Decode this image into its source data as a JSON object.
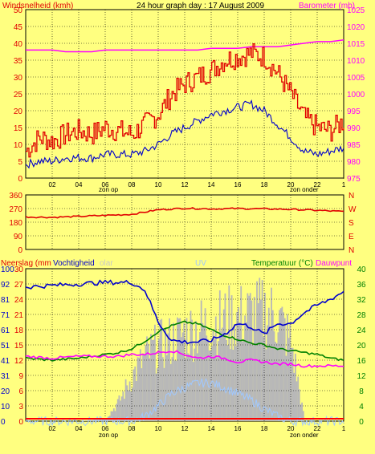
{
  "header": {
    "title": "24 hour graph day : 17 August 2009",
    "left_axis_label": "Windsnelheid (kmh)",
    "right_axis_label": "Barometer (mb)"
  },
  "time_axis": {
    "ticks": [
      "02",
      "04",
      "06",
      "08",
      "10",
      "12",
      "14",
      "16",
      "18",
      "20",
      "22",
      "1"
    ],
    "sunrise_label": "zon op",
    "sunset_label": "zon onder"
  },
  "panel3": {
    "label_rain": "Neerslag (mm",
    "label_humidity": "Vochtigheid",
    "label_solar": "olar",
    "label_uv": "UV",
    "label_temp": "Temperatuur (°C)",
    "label_dew": "Dauwpunt"
  },
  "colors": {
    "background": "#ffff80",
    "wind_gust": "#e00000",
    "wind_avg": "#0000cc",
    "barometer": "#ff00ff",
    "direction": "#e00000",
    "humidity": "#0000cc",
    "temperature": "#008000",
    "dewpoint": "#ff00ff",
    "solar": "#b8b8b8",
    "uv": "#a0c8ff",
    "rain": "#ff0000"
  },
  "chart_data": [
    {
      "type": "line",
      "title": "24 hour graph day : 17 August 2009",
      "xlabel": "",
      "ylabel": "Windsnelheid (kmh)",
      "y2label": "Barometer (mb)",
      "x_ticks": [
        "02",
        "04",
        "06",
        "08",
        "10",
        "12",
        "14",
        "16",
        "18",
        "20",
        "22",
        "1"
      ],
      "ylim": [
        0,
        50
      ],
      "y_ticks": [
        0,
        5,
        10,
        15,
        20,
        25,
        30,
        35,
        40,
        45,
        50
      ],
      "y2lim": [
        975,
        1025
      ],
      "y2_ticks": [
        975,
        980,
        985,
        990,
        995,
        1000,
        1005,
        1010,
        1015,
        1020,
        1025
      ],
      "x": [
        0,
        1,
        2,
        3,
        4,
        5,
        6,
        7,
        8,
        9,
        10,
        11,
        12,
        13,
        14,
        15,
        16,
        17,
        18,
        19,
        20,
        21,
        22,
        23,
        24
      ],
      "series": [
        {
          "name": "Windsnelheid (kmh)",
          "axis": "left",
          "values": [
            8,
            12,
            11,
            13,
            14,
            13,
            15,
            14,
            13,
            16,
            19,
            25,
            28,
            30,
            32,
            35,
            36,
            37,
            36,
            31,
            25,
            18,
            15,
            14,
            17
          ]
        },
        {
          "name": "Gemiddelde windsnelheid",
          "axis": "left",
          "values": [
            4,
            5,
            5,
            6,
            6,
            6,
            7,
            7,
            7,
            8,
            10,
            13,
            15,
            17,
            19,
            20,
            21,
            22,
            20,
            16,
            12,
            8,
            7,
            8,
            9
          ]
        },
        {
          "name": "Barometer (mb)",
          "axis": "right",
          "values": [
            1013,
            1013,
            1013,
            1012.5,
            1012.5,
            1012.5,
            1013,
            1013,
            1013,
            1013,
            1013,
            1013,
            1013,
            1013,
            1013.5,
            1013.5,
            1013.5,
            1014,
            1014,
            1014,
            1014.5,
            1015,
            1015.5,
            1015.5,
            1016
          ]
        }
      ]
    },
    {
      "type": "line",
      "title": "",
      "xlabel": "",
      "ylabel": "",
      "ylim": [
        0,
        360
      ],
      "y_ticks": [
        0,
        90,
        180,
        270,
        360
      ],
      "y2_ticks": [
        "N",
        "E",
        "S",
        "W",
        "N"
      ],
      "x": [
        0,
        2,
        4,
        6,
        8,
        10,
        12,
        14,
        16,
        18,
        20,
        22,
        24
      ],
      "series": [
        {
          "name": "Windrichting",
          "values": [
            215,
            212,
            218,
            225,
            232,
            262,
            272,
            268,
            270,
            268,
            265,
            258,
            250
          ]
        }
      ]
    },
    {
      "type": "area",
      "title": "",
      "xlabel": "",
      "ylabel_left": "Neerslag (mm",
      "ylabel_left2": "Vochtigheid",
      "ylabel_right": "Temperatuur (°C)",
      "ylabel_right2": "Dauwpunt",
      "y_ticks_humidity": [
        0,
        10,
        20,
        31,
        41,
        51,
        61,
        71,
        81,
        92,
        100
      ],
      "y_ticks_rain": [
        0,
        3,
        6,
        9,
        12,
        15,
        18,
        21,
        24,
        27,
        30
      ],
      "ylim_temperature": [
        0,
        40
      ],
      "y_ticks_temperature": [
        0,
        4,
        8,
        12,
        16,
        20,
        24,
        28,
        32,
        36,
        40
      ],
      "x": [
        0,
        2,
        4,
        6,
        7,
        8,
        9,
        10,
        11,
        12,
        13,
        14,
        15,
        16,
        17,
        18,
        19,
        20,
        21,
        22,
        23,
        24
      ],
      "series": [
        {
          "name": "Vochtigheid",
          "axis": "humidity",
          "values": [
            88,
            89,
            90,
            91,
            91,
            91,
            86,
            65,
            53,
            52,
            52,
            53,
            57,
            64,
            62,
            57,
            64,
            64,
            71,
            76,
            80,
            85
          ]
        },
        {
          "name": "Temperatuur (°C)",
          "axis": "temperature",
          "values": [
            16.5,
            16,
            16.5,
            17.5,
            18,
            19,
            21,
            23.5,
            25,
            26,
            25.5,
            24,
            22.5,
            21.5,
            20.5,
            20,
            19,
            18.5,
            18,
            17.5,
            16.5,
            16
          ]
        },
        {
          "name": "Dauwpunt",
          "axis": "temperature",
          "values": [
            17,
            16.5,
            17,
            17,
            17,
            17.5,
            17.5,
            18,
            18.5,
            17.5,
            16.5,
            17,
            16.5,
            15.5,
            16,
            15.5,
            15,
            15,
            14.5,
            14.5,
            14.5,
            14.5
          ]
        },
        {
          "name": "Solar",
          "axis": "humidity",
          "values": [
            0,
            0,
            0,
            2,
            15,
            35,
            50,
            58,
            62,
            68,
            72,
            75,
            78,
            80,
            82,
            84,
            80,
            60,
            0,
            0,
            0,
            0
          ]
        },
        {
          "name": "UV",
          "axis": "humidity",
          "values": [
            0,
            0,
            0,
            0,
            0,
            0,
            3,
            10,
            18,
            22,
            25,
            25,
            22,
            18,
            14,
            8,
            3,
            0,
            0,
            0,
            0,
            0
          ]
        },
        {
          "name": "Neerslag (mm",
          "axis": "rain",
          "values": [
            0,
            0,
            0,
            0,
            0,
            0,
            0,
            0,
            0,
            0,
            0,
            0,
            0,
            0,
            0,
            0,
            0,
            0,
            0,
            0,
            0,
            0
          ]
        }
      ]
    }
  ]
}
